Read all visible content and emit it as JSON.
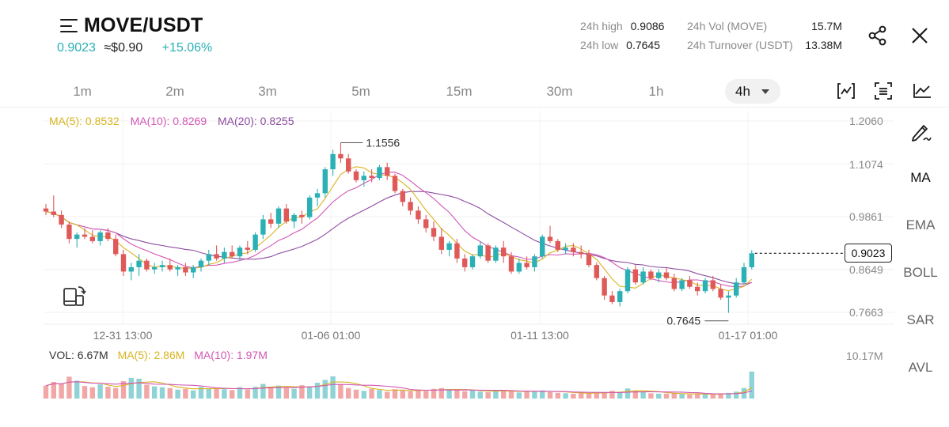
{
  "header": {
    "pair": "MOVE/USDT",
    "last_price": "0.9023",
    "usd_price": "≈$0.90",
    "change": "+15.06%",
    "high_label": "24h high",
    "high_value": "0.9086",
    "low_label": "24h low",
    "low_value": "0.7645",
    "vol_label": "24h Vol (MOVE)",
    "vol_value": "15.7M",
    "turnover_label": "24h Turnover (USDT)",
    "turnover_value": "13.38M"
  },
  "timeframes": [
    "1m",
    "2m",
    "3m",
    "5m",
    "15m",
    "30m",
    "1h"
  ],
  "active_timeframe": "4h",
  "side_menu": [
    "MA",
    "EMA",
    "BOLL",
    "SAR",
    "AVL"
  ],
  "legend": {
    "ma5": "MA(5): 0.8532",
    "ma10": "MA(10): 0.8269",
    "ma20": "MA(20): 0.8255"
  },
  "volume_legend": {
    "vol": "VOL: 6.67M",
    "ma5": "MA(5): 2.86M",
    "ma10": "MA(10): 1.97M",
    "max": "10.17M"
  },
  "price_axis": [
    "1.2060",
    "1.1074",
    "0.9861",
    "0.8649",
    "0.7663"
  ],
  "time_axis": [
    "12-31 13:00",
    "01-06 01:00",
    "01-11 13:00",
    "01-17 01:00"
  ],
  "annotations": {
    "high": "1.1556",
    "low": "0.7645",
    "current": "0.9023"
  },
  "colors": {
    "up": "#2ab0b5",
    "down": "#e05959",
    "ma5": "#d9b320",
    "ma10": "#d257b6",
    "ma20": "#8e4ca0"
  },
  "chart_data": {
    "type": "candlestick",
    "ylim": [
      0.7663,
      1.206
    ],
    "candles": [
      [
        1.005,
        1.015,
        0.99,
        0.998
      ],
      [
        0.998,
        1.035,
        0.985,
        0.99
      ],
      [
        0.99,
        1.0,
        0.96,
        0.968
      ],
      [
        0.968,
        0.975,
        0.925,
        0.935
      ],
      [
        0.935,
        0.95,
        0.915,
        0.945
      ],
      [
        0.945,
        0.96,
        0.935,
        0.94
      ],
      [
        0.94,
        0.955,
        0.925,
        0.93
      ],
      [
        0.93,
        0.955,
        0.92,
        0.95
      ],
      [
        0.95,
        0.96,
        0.93,
        0.935
      ],
      [
        0.935,
        0.945,
        0.895,
        0.9
      ],
      [
        0.9,
        0.91,
        0.85,
        0.86
      ],
      [
        0.86,
        0.88,
        0.84,
        0.87
      ],
      [
        0.87,
        0.9,
        0.85,
        0.885
      ],
      [
        0.885,
        0.89,
        0.86,
        0.865
      ],
      [
        0.865,
        0.88,
        0.855,
        0.87
      ],
      [
        0.87,
        0.885,
        0.86,
        0.875
      ],
      [
        0.875,
        0.89,
        0.86,
        0.865
      ],
      [
        0.865,
        0.875,
        0.85,
        0.87
      ],
      [
        0.87,
        0.88,
        0.85,
        0.858
      ],
      [
        0.858,
        0.875,
        0.845,
        0.87
      ],
      [
        0.87,
        0.89,
        0.86,
        0.885
      ],
      [
        0.885,
        0.91,
        0.875,
        0.9
      ],
      [
        0.9,
        0.92,
        0.885,
        0.89
      ],
      [
        0.89,
        0.915,
        0.88,
        0.905
      ],
      [
        0.905,
        0.92,
        0.89,
        0.895
      ],
      [
        0.895,
        0.92,
        0.885,
        0.915
      ],
      [
        0.915,
        0.93,
        0.9,
        0.91
      ],
      [
        0.91,
        0.95,
        0.905,
        0.945
      ],
      [
        0.945,
        0.99,
        0.935,
        0.98
      ],
      [
        0.98,
        0.995,
        0.96,
        0.97
      ],
      [
        0.97,
        1.01,
        0.96,
        1.005
      ],
      [
        1.005,
        1.015,
        0.97,
        0.975
      ],
      [
        0.975,
        0.995,
        0.96,
        0.99
      ],
      [
        0.99,
        1.0,
        0.97,
        0.985
      ],
      [
        0.985,
        1.035,
        0.98,
        1.03
      ],
      [
        1.03,
        1.05,
        1.01,
        1.04
      ],
      [
        1.04,
        1.1,
        1.03,
        1.095
      ],
      [
        1.095,
        1.14,
        1.08,
        1.13
      ],
      [
        1.13,
        1.156,
        1.11,
        1.12
      ],
      [
        1.12,
        1.13,
        1.085,
        1.09
      ],
      [
        1.09,
        1.095,
        1.065,
        1.07
      ],
      [
        1.07,
        1.09,
        1.055,
        1.08
      ],
      [
        1.08,
        1.095,
        1.065,
        1.075
      ],
      [
        1.075,
        1.105,
        1.07,
        1.1
      ],
      [
        1.1,
        1.11,
        1.07,
        1.08
      ],
      [
        1.08,
        1.085,
        1.04,
        1.045
      ],
      [
        1.045,
        1.05,
        1.01,
        1.02
      ],
      [
        1.02,
        1.03,
        0.99,
        1.0
      ],
      [
        1.0,
        1.01,
        0.97,
        0.98
      ],
      [
        0.98,
        0.99,
        0.95,
        0.96
      ],
      [
        0.96,
        0.975,
        0.93,
        0.94
      ],
      [
        0.94,
        0.96,
        0.9,
        0.91
      ],
      [
        0.91,
        0.93,
        0.895,
        0.925
      ],
      [
        0.925,
        0.935,
        0.88,
        0.89
      ],
      [
        0.89,
        0.9,
        0.86,
        0.87
      ],
      [
        0.87,
        0.9,
        0.865,
        0.895
      ],
      [
        0.895,
        0.93,
        0.89,
        0.92
      ],
      [
        0.92,
        0.925,
        0.88,
        0.885
      ],
      [
        0.885,
        0.92,
        0.88,
        0.915
      ],
      [
        0.915,
        0.93,
        0.88,
        0.895
      ],
      [
        0.895,
        0.905,
        0.855,
        0.86
      ],
      [
        0.86,
        0.89,
        0.855,
        0.88
      ],
      [
        0.88,
        0.895,
        0.865,
        0.87
      ],
      [
        0.87,
        0.9,
        0.86,
        0.895
      ],
      [
        0.895,
        0.945,
        0.89,
        0.94
      ],
      [
        0.94,
        0.965,
        0.925,
        0.93
      ],
      [
        0.93,
        0.935,
        0.905,
        0.91
      ],
      [
        0.91,
        0.925,
        0.9,
        0.915
      ],
      [
        0.915,
        0.925,
        0.895,
        0.905
      ],
      [
        0.905,
        0.92,
        0.89,
        0.9
      ],
      [
        0.9,
        0.91,
        0.87,
        0.875
      ],
      [
        0.875,
        0.88,
        0.84,
        0.845
      ],
      [
        0.845,
        0.85,
        0.795,
        0.805
      ],
      [
        0.805,
        0.815,
        0.785,
        0.79
      ],
      [
        0.79,
        0.82,
        0.78,
        0.815
      ],
      [
        0.815,
        0.87,
        0.81,
        0.865
      ],
      [
        0.865,
        0.875,
        0.83,
        0.835
      ],
      [
        0.835,
        0.87,
        0.83,
        0.86
      ],
      [
        0.86,
        0.865,
        0.84,
        0.845
      ],
      [
        0.845,
        0.865,
        0.835,
        0.858
      ],
      [
        0.858,
        0.868,
        0.84,
        0.845
      ],
      [
        0.845,
        0.855,
        0.815,
        0.82
      ],
      [
        0.82,
        0.845,
        0.815,
        0.84
      ],
      [
        0.84,
        0.85,
        0.82,
        0.825
      ],
      [
        0.825,
        0.835,
        0.805,
        0.815
      ],
      [
        0.815,
        0.845,
        0.81,
        0.84
      ],
      [
        0.84,
        0.85,
        0.815,
        0.82
      ],
      [
        0.82,
        0.83,
        0.795,
        0.8
      ],
      [
        0.8,
        0.815,
        0.765,
        0.805
      ],
      [
        0.805,
        0.845,
        0.8,
        0.835
      ],
      [
        0.835,
        0.88,
        0.83,
        0.87
      ],
      [
        0.87,
        0.909,
        0.865,
        0.902
      ]
    ],
    "volume": [
      3.2,
      4.1,
      3.6,
      5.4,
      4.4,
      3.1,
      2.8,
      3.5,
      2.9,
      2.6,
      4.3,
      5.1,
      4.9,
      3.4,
      3.0,
      2.8,
      2.6,
      2.2,
      2.4,
      2.0,
      2.9,
      2.5,
      2.6,
      2.3,
      2.1,
      2.8,
      2.2,
      2.9,
      3.6,
      2.8,
      3.2,
      2.6,
      2.4,
      3.3,
      3.0,
      3.9,
      4.6,
      5.5,
      3.5,
      2.6,
      2.2,
      1.9,
      2.4,
      2.1,
      1.7,
      2.3,
      2.0,
      1.8,
      2.2,
      1.9,
      2.4,
      2.6,
      2.1,
      2.2,
      1.8,
      2.0,
      1.7,
      1.6,
      2.1,
      1.9,
      1.8,
      1.5,
      1.7,
      1.9,
      2.0,
      1.6,
      1.4,
      1.3,
      1.2,
      1.4,
      1.3,
      1.5,
      1.4,
      1.9,
      1.7,
      2.5,
      2.0,
      1.6,
      1.3,
      1.2,
      1.2,
      1.3,
      1.1,
      1.0,
      1.2,
      1.1,
      1.0,
      1.2,
      1.4,
      1.7,
      2.6,
      6.67
    ],
    "volume_ylim": [
      0,
      10.17
    ]
  }
}
